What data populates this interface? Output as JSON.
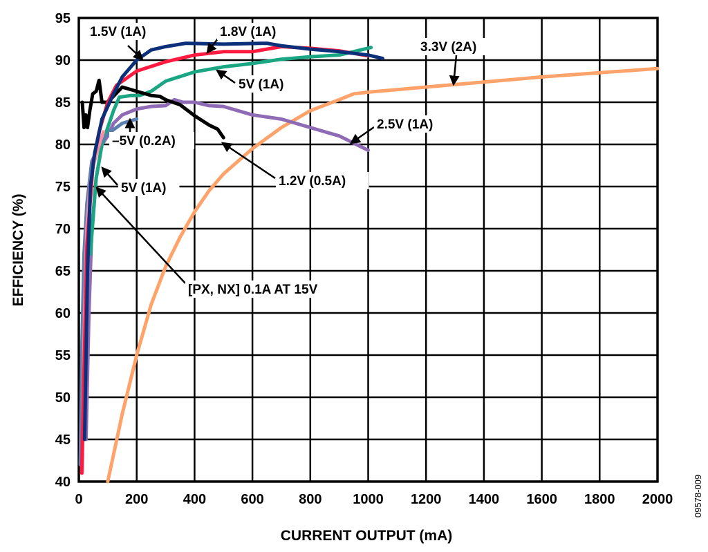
{
  "chart_data": {
    "type": "line",
    "title": "",
    "xlabel": "CURRENT OUTPUT (mA)",
    "ylabel": "EFFICIENCY (%)",
    "xlim": [
      0,
      2000
    ],
    "ylim": [
      40,
      95
    ],
    "xticks": [
      "0",
      "200",
      "400",
      "600",
      "800",
      "1000",
      "1200",
      "1400",
      "1600",
      "1800",
      "2000"
    ],
    "yticks": [
      "40",
      "45",
      "50",
      "55",
      "60",
      "65",
      "70",
      "75",
      "80",
      "85",
      "90",
      "95"
    ],
    "grid": true,
    "legend": "none (inline callouts)",
    "figure_id": "09578-009",
    "series": [
      {
        "name": "3.3V (2A)",
        "color": "#ffa36b",
        "points": [
          [
            100,
            40
          ],
          [
            150,
            48
          ],
          [
            200,
            55
          ],
          [
            250,
            61
          ],
          [
            300,
            65.5
          ],
          [
            350,
            69
          ],
          [
            400,
            72
          ],
          [
            450,
            74.5
          ],
          [
            500,
            76.5
          ],
          [
            600,
            79.5
          ],
          [
            700,
            82
          ],
          [
            800,
            84
          ],
          [
            900,
            85.3
          ],
          [
            950,
            86
          ],
          [
            1000,
            86.2
          ],
          [
            1200,
            86.8
          ],
          [
            1400,
            87.4
          ],
          [
            1600,
            88
          ],
          [
            1800,
            88.5
          ],
          [
            2000,
            89
          ]
        ]
      },
      {
        "name": "2.5V (1A)",
        "color": "#8f6bb5",
        "points": [
          [
            25,
            45
          ],
          [
            35,
            60
          ],
          [
            45,
            70
          ],
          [
            60,
            76
          ],
          [
            80,
            80
          ],
          [
            100,
            81
          ],
          [
            120,
            82.5
          ],
          [
            150,
            83.5
          ],
          [
            200,
            84.2
          ],
          [
            250,
            84.5
          ],
          [
            300,
            84.6
          ],
          [
            330,
            85.3
          ],
          [
            360,
            85
          ],
          [
            400,
            85
          ],
          [
            450,
            84.6
          ],
          [
            500,
            84.5
          ],
          [
            600,
            83.5
          ],
          [
            700,
            83
          ],
          [
            800,
            82
          ],
          [
            900,
            81
          ],
          [
            1000,
            79.3
          ]
        ]
      },
      {
        "name": "5V (1A)",
        "color": "#1aa682",
        "points": [
          [
            40,
            67
          ],
          [
            60,
            76
          ],
          [
            80,
            80
          ],
          [
            120,
            84
          ],
          [
            140,
            85.6
          ],
          [
            180,
            85.8
          ],
          [
            210,
            85.8
          ],
          [
            250,
            86.3
          ],
          [
            300,
            87.5
          ],
          [
            400,
            88.6
          ],
          [
            500,
            89.2
          ],
          [
            600,
            89.6
          ],
          [
            700,
            90.1
          ],
          [
            800,
            90.4
          ],
          [
            900,
            90.6
          ],
          [
            1010,
            91.5
          ]
        ]
      },
      {
        "name": "1.2V (0.5A)",
        "color": "#000000",
        "points": [
          [
            12,
            85
          ],
          [
            18,
            82
          ],
          [
            24,
            83.5
          ],
          [
            30,
            82
          ],
          [
            38,
            84
          ],
          [
            48,
            86
          ],
          [
            60,
            86.3
          ],
          [
            70,
            87.6
          ],
          [
            80,
            85
          ],
          [
            100,
            85
          ],
          [
            150,
            86.8
          ],
          [
            200,
            86.3
          ],
          [
            250,
            85.8
          ],
          [
            280,
            85.7
          ],
          [
            300,
            85.3
          ],
          [
            350,
            84.7
          ],
          [
            400,
            83.4
          ],
          [
            450,
            82.3
          ],
          [
            480,
            81.8
          ],
          [
            500,
            80.8
          ]
        ]
      },
      {
        "name": "–5V (0.2A)",
        "color": "#5b7fb0",
        "points": [
          [
            5,
            42
          ],
          [
            10,
            55
          ],
          [
            18,
            67
          ],
          [
            28,
            73
          ],
          [
            45,
            78
          ],
          [
            80,
            80.5
          ],
          [
            110,
            81.5
          ],
          [
            150,
            82.5
          ],
          [
            200,
            83
          ]
        ]
      },
      {
        "name": "[PX, NX] 0.1A AT 15V",
        "color": "#f590a5",
        "points": [
          [
            12,
            41
          ],
          [
            15,
            50
          ],
          [
            20,
            60
          ],
          [
            28,
            70
          ],
          [
            38,
            75
          ],
          [
            50,
            77.5
          ],
          [
            62,
            79
          ],
          [
            75,
            80.5
          ],
          [
            85,
            81.5
          ]
        ]
      },
      {
        "name": "1.8V (1A)",
        "color": "#ff1a40",
        "points": [
          [
            10,
            41
          ],
          [
            28,
            68
          ],
          [
            50,
            78
          ],
          [
            70,
            81.5
          ],
          [
            100,
            85
          ],
          [
            130,
            87
          ],
          [
            200,
            88.7
          ],
          [
            300,
            89.8
          ],
          [
            400,
            90.6
          ],
          [
            500,
            91
          ],
          [
            600,
            91
          ],
          [
            650,
            91.3
          ],
          [
            700,
            91.6
          ],
          [
            800,
            91.4
          ],
          [
            900,
            91.1
          ],
          [
            1000,
            90.5
          ]
        ]
      },
      {
        "name": "1.5V (1A)",
        "color": "#0c2f7a",
        "points": [
          [
            20,
            45
          ],
          [
            30,
            65
          ],
          [
            40,
            75
          ],
          [
            55,
            79
          ],
          [
            80,
            83
          ],
          [
            120,
            86
          ],
          [
            150,
            88
          ],
          [
            200,
            90
          ],
          [
            250,
            91.2
          ],
          [
            300,
            91.6
          ],
          [
            370,
            92
          ],
          [
            500,
            91.9
          ],
          [
            650,
            92
          ],
          [
            700,
            91.7
          ],
          [
            800,
            91.3
          ],
          [
            900,
            91
          ],
          [
            1000,
            90.6
          ],
          [
            1050,
            90.2
          ]
        ]
      }
    ],
    "annotations": [
      "1.5V (1A)",
      "1.8V (1A)",
      "5V (1A)",
      "3.3V (2A)",
      "2.5V (1A)",
      "–5V (0.2A)",
      "1.2V (0.5A)",
      "5V (1A)",
      "[PX, NX] 0.1A AT 15V"
    ]
  }
}
